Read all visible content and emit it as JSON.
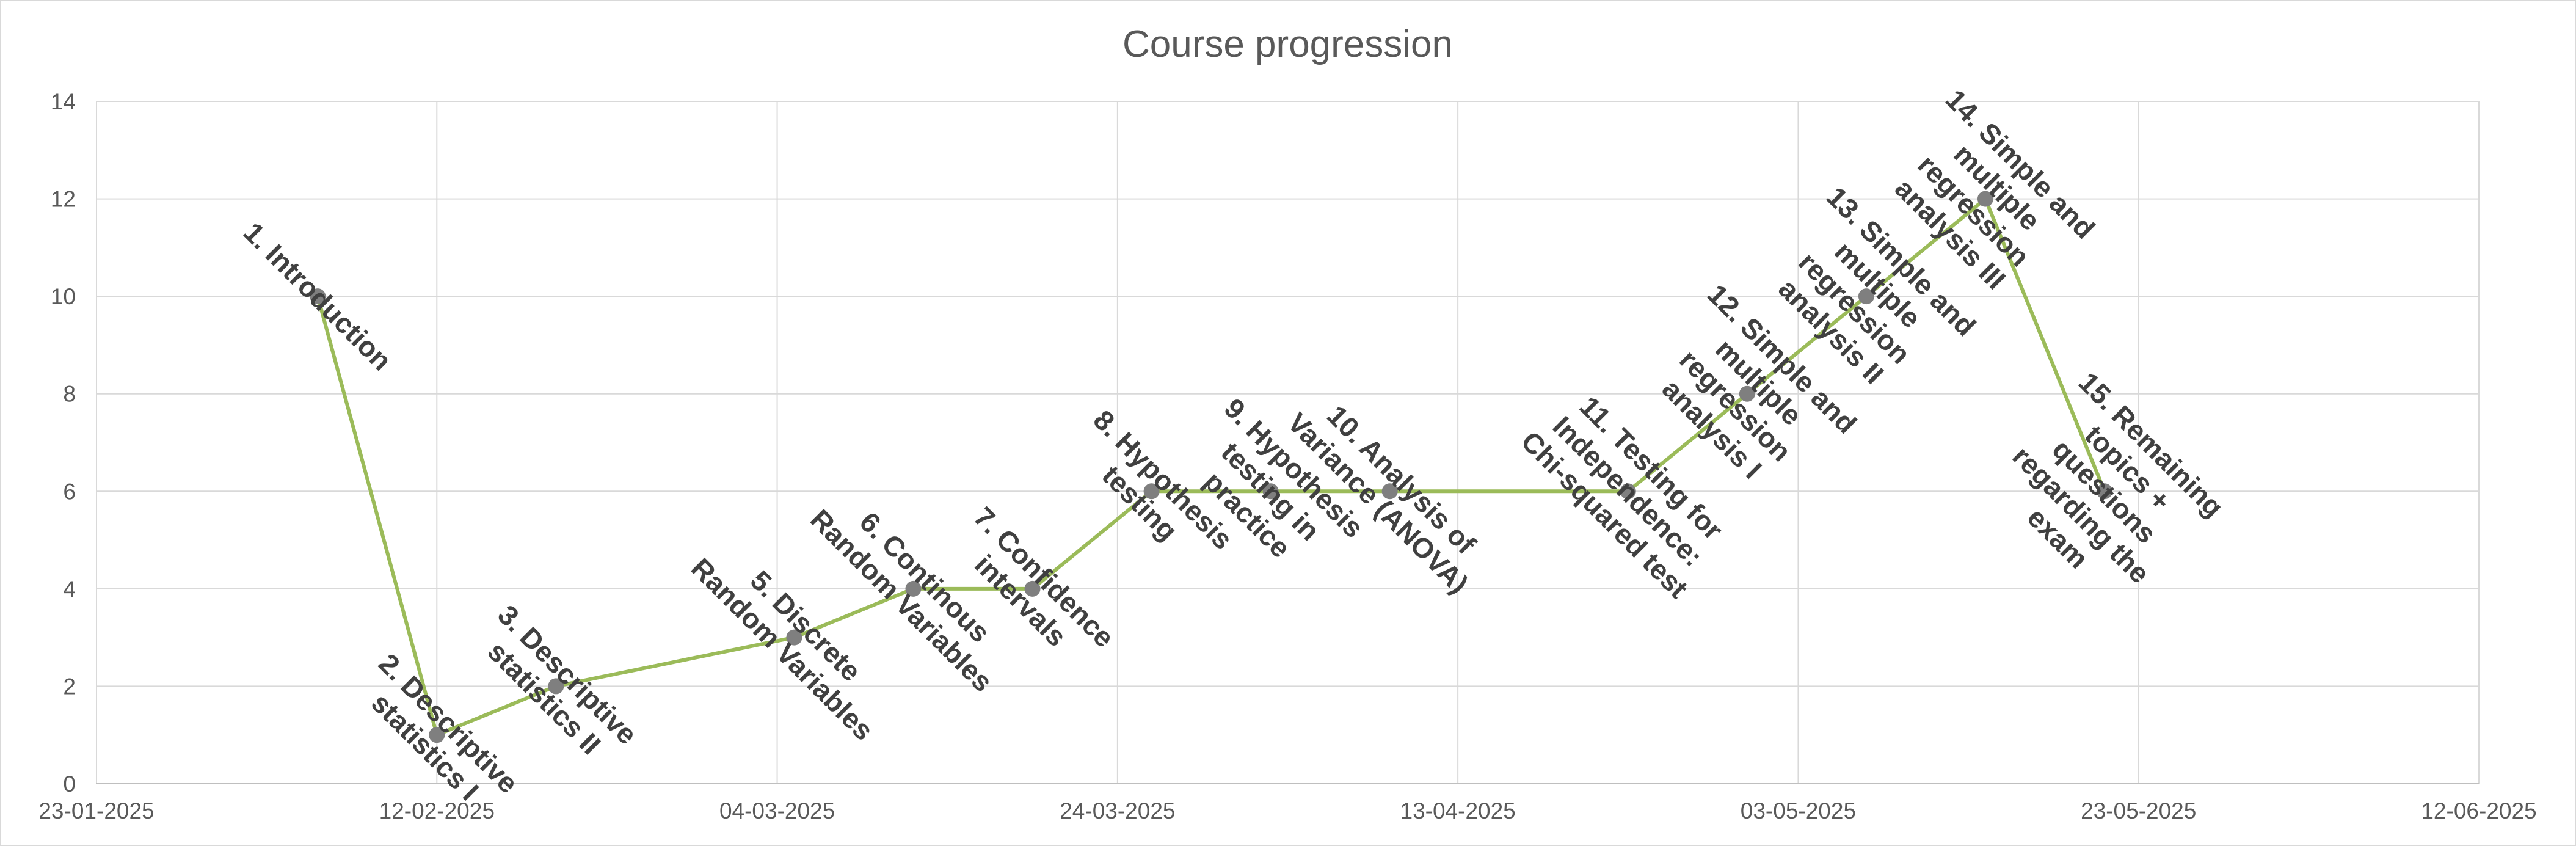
{
  "chart_data": {
    "type": "scatter",
    "title": "Course progression",
    "xlabel": "",
    "ylabel": "",
    "x_tick_labels": [
      "23-01-2025",
      "12-02-2025",
      "04-03-2025",
      "24-03-2025",
      "13-04-2025",
      "03-05-2025",
      "23-05-2025",
      "12-06-2025"
    ],
    "xlim": [
      "2025-01-23",
      "2025-06-12"
    ],
    "ylim": [
      0,
      14
    ],
    "y_ticks": [
      0,
      2,
      4,
      6,
      8,
      10,
      12,
      14
    ],
    "grid": true,
    "legend": "none",
    "line_color": "#9bbb59",
    "marker_color": "#7f7f7f",
    "series": [
      {
        "points": [
          {
            "x": "2025-02-05",
            "y": 10,
            "label": "1. Introduction"
          },
          {
            "x": "2025-02-12",
            "y": 1,
            "label": "2. Descriptive statistics I"
          },
          {
            "x": "2025-02-19",
            "y": 2,
            "label": "3. Descriptive statistics II"
          },
          {
            "x": "2025-03-05",
            "y": 3,
            "label": "5. Discrete Random Variables"
          },
          {
            "x": "2025-03-12",
            "y": 4,
            "label": "6. Continous Random Variables"
          },
          {
            "x": "2025-03-19",
            "y": 4,
            "label": "7. Confidence intervals"
          },
          {
            "x": "2025-03-26",
            "y": 6,
            "label": "8. Hypothesis testing"
          },
          {
            "x": "2025-04-02",
            "y": 6,
            "label": "9. Hypothesis testing in practice"
          },
          {
            "x": "2025-04-09",
            "y": 6,
            "label": "10. Analysis of Variance (ANOVA)"
          },
          {
            "x": "2025-04-23",
            "y": 6,
            "label": "11. Testing for Independence: Chi-squared test"
          },
          {
            "x": "2025-04-30",
            "y": 8,
            "label": "12. Simple and multiple regression analysis I"
          },
          {
            "x": "2025-05-07",
            "y": 10,
            "label": "13. Simple and multiple regression analysis II"
          },
          {
            "x": "2025-05-14",
            "y": 12,
            "label": "14. Simple and multiple regression analysis III"
          },
          {
            "x": "2025-05-21",
            "y": 6,
            "label": "15. Remaining topics + questions regarding the exam"
          }
        ]
      }
    ]
  }
}
